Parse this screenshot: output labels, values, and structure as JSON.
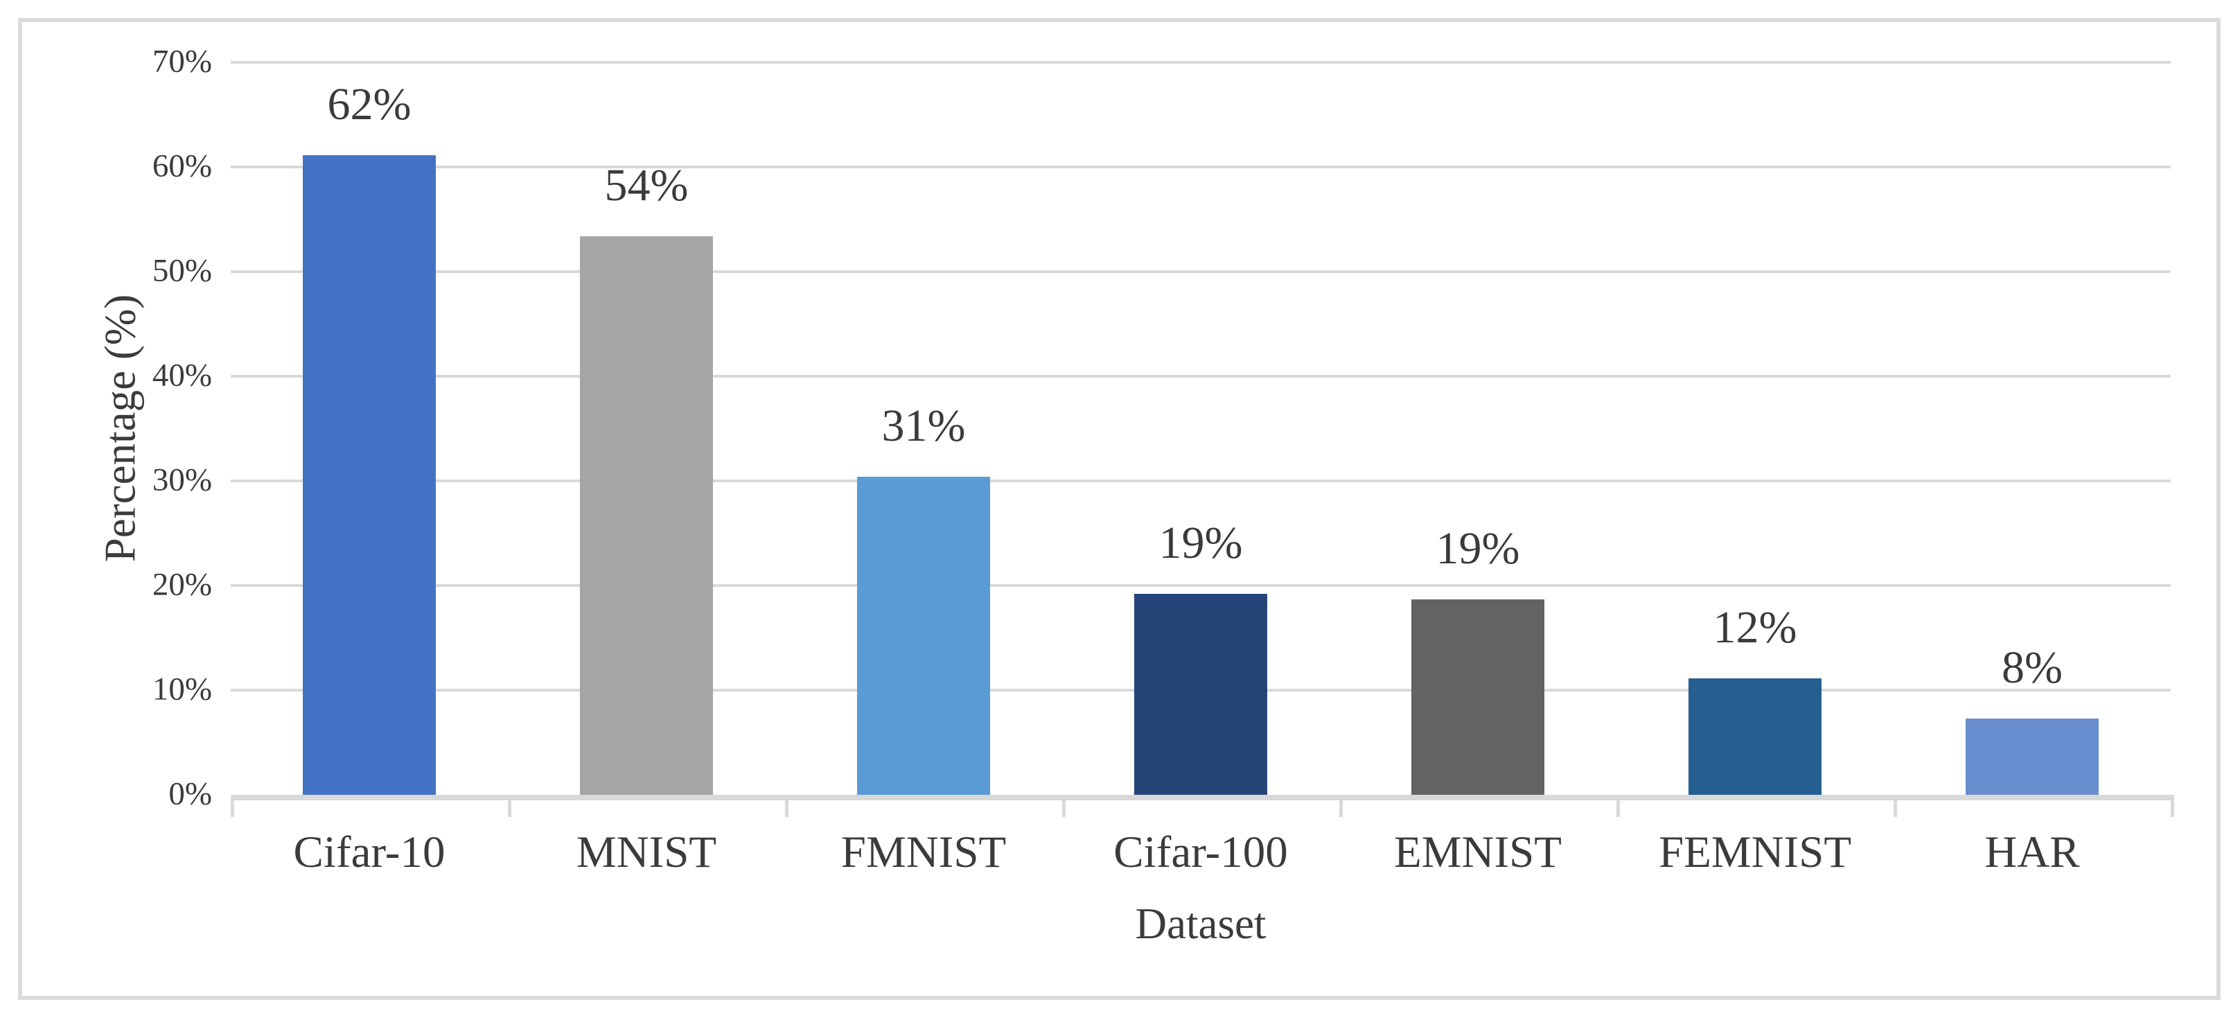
{
  "chart_data": {
    "type": "bar",
    "title": "",
    "xlabel": "Dataset",
    "ylabel": "Percentage (%)",
    "categories": [
      "Cifar-10",
      "MNIST",
      "FMNIST",
      "Cifar-100",
      "EMNIST",
      "FEMNIST",
      "HAR"
    ],
    "values": [
      62,
      54,
      31,
      19,
      19,
      12,
      8
    ],
    "data_labels": [
      "62%",
      "54%",
      "31%",
      "19%",
      "19%",
      "12%",
      "8%"
    ],
    "bar_heights_pct": [
      61.1,
      53.4,
      30.4,
      19.2,
      18.7,
      11.1,
      7.3
    ],
    "bar_colors": [
      "#4472C4",
      "#A5A5A5",
      "#5B9BD5",
      "#264478",
      "#636363",
      "#255E91",
      "#698ED0"
    ],
    "y_ticks": [
      "0%",
      "10%",
      "20%",
      "30%",
      "40%",
      "50%",
      "60%",
      "70%"
    ],
    "y_tick_values": [
      0,
      10,
      20,
      30,
      40,
      50,
      60,
      70
    ],
    "ylim": [
      0,
      70
    ],
    "grid": true,
    "legend": false
  },
  "axes": {
    "x_title": "Dataset",
    "y_title": "Percentage (%)"
  },
  "colors": {
    "background": "#FFFFFF",
    "frame_border": "#DBDBDB",
    "gridline": "#D9D9D9",
    "axis_line": "#D9D9D9",
    "text": "#3B3B3B"
  }
}
